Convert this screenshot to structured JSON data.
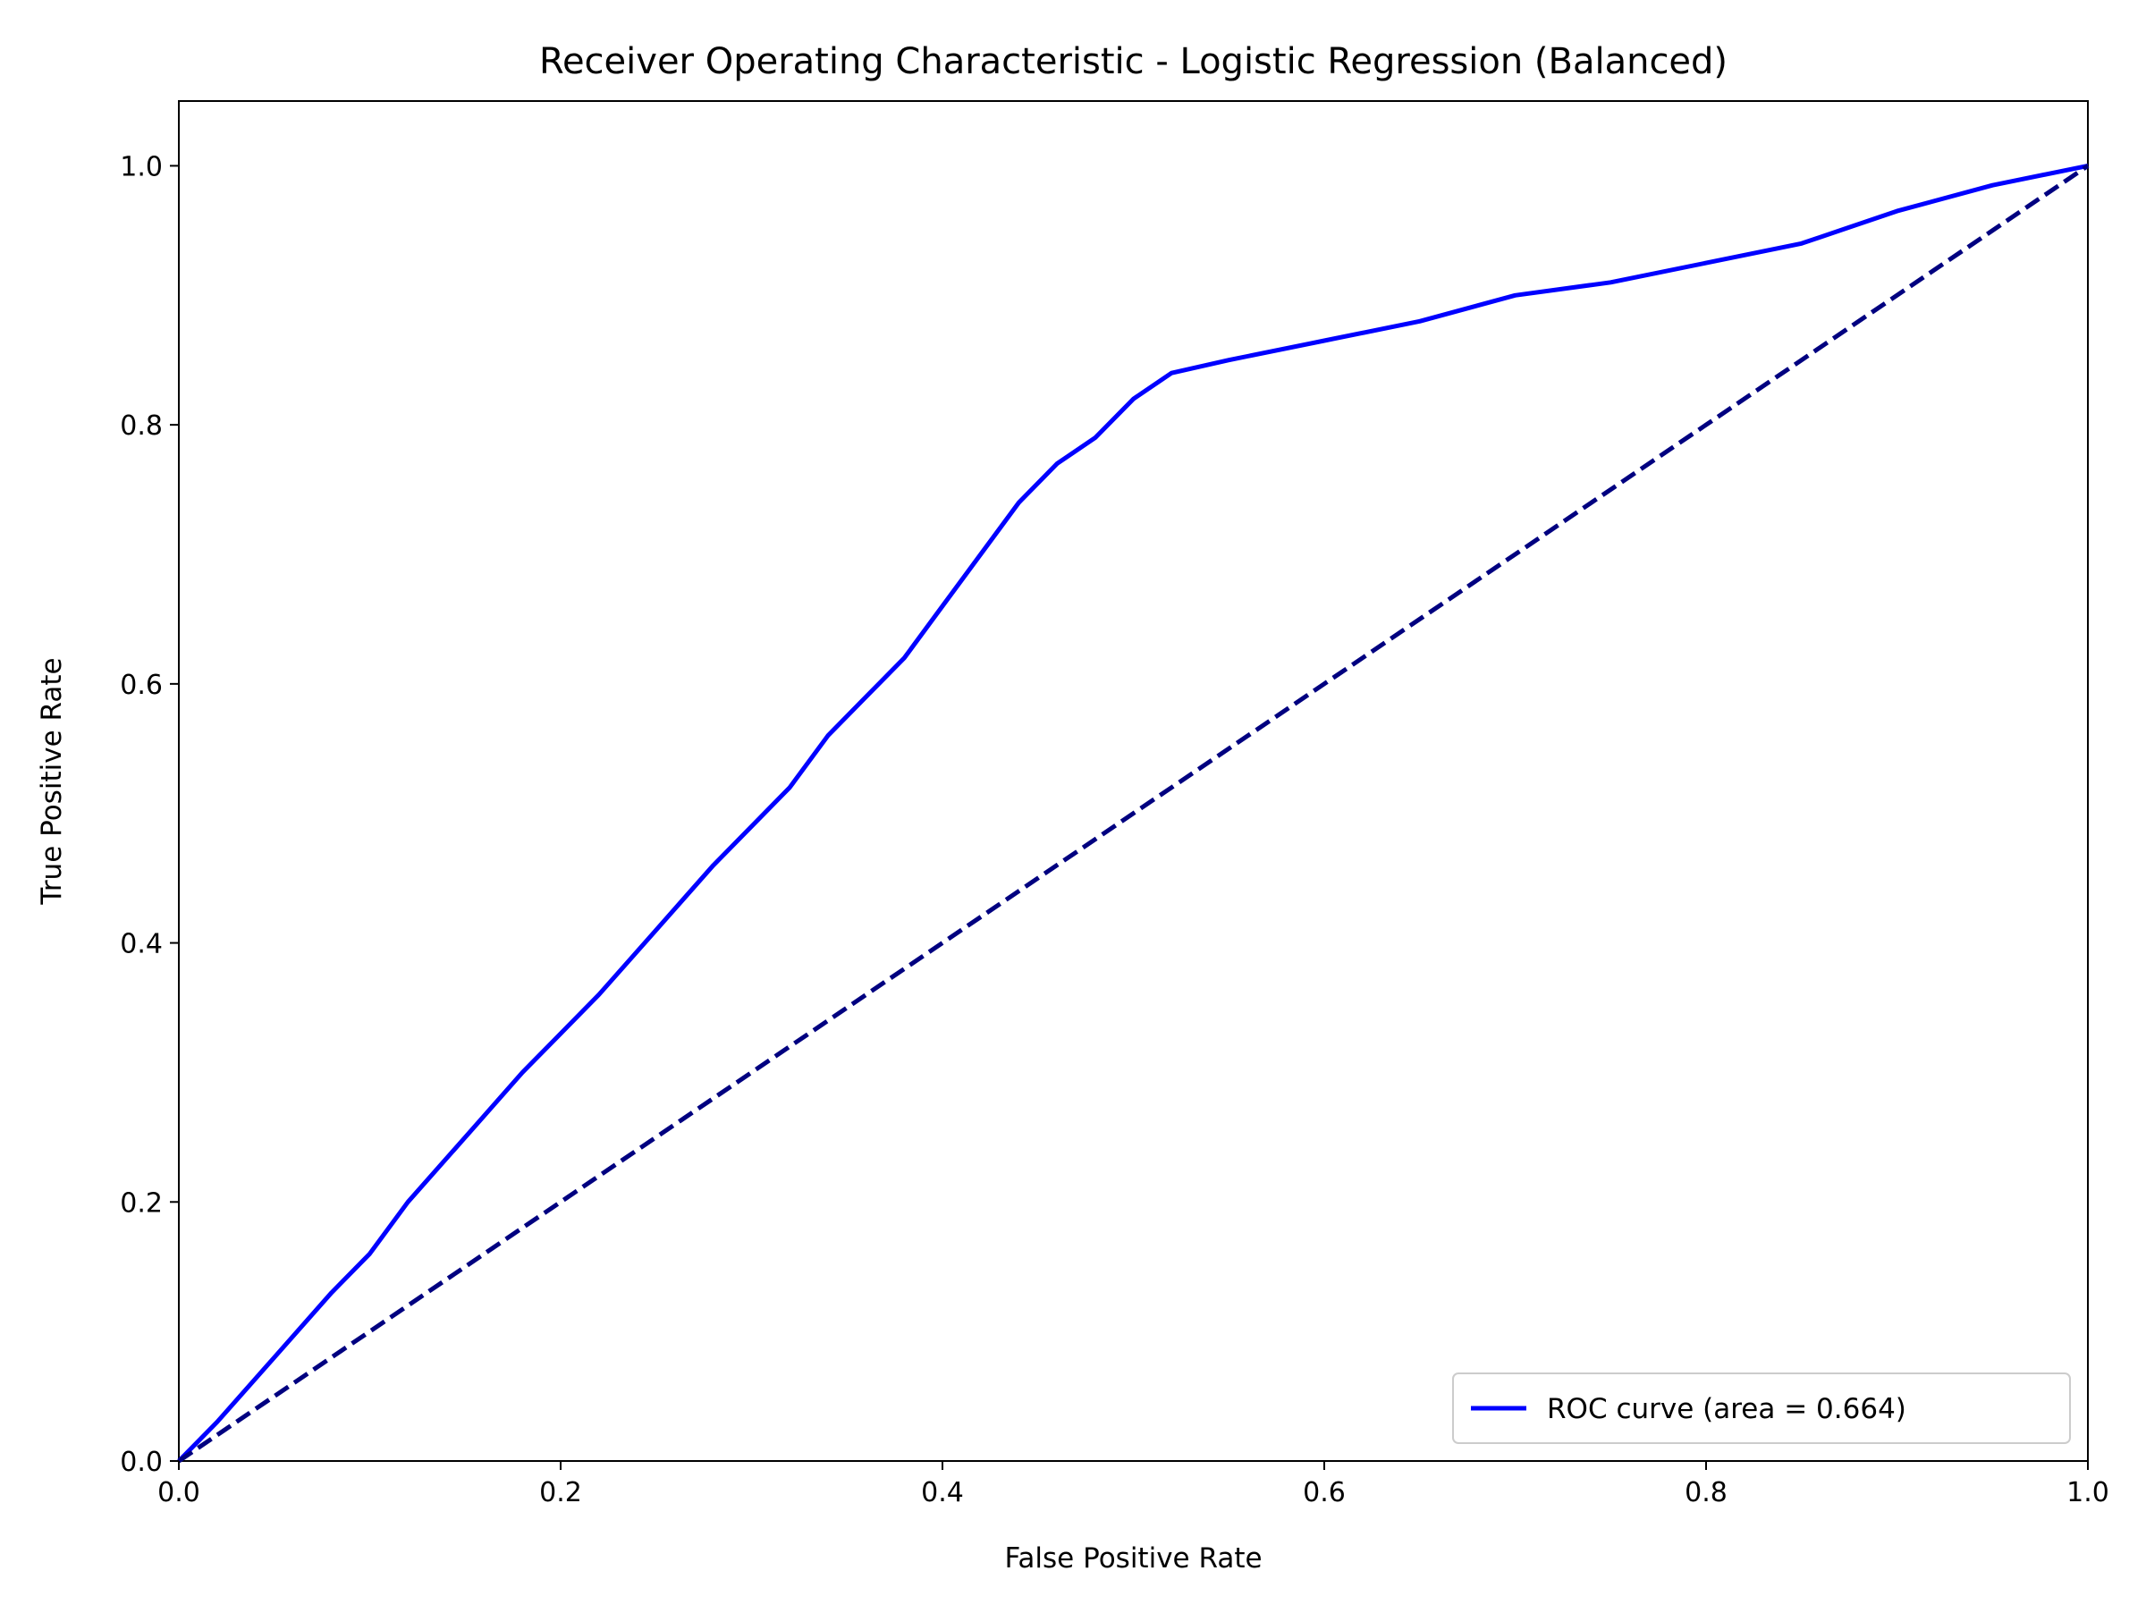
{
  "chart_data": {
    "type": "line",
    "title": "Receiver Operating Characteristic - Logistic Regression (Balanced)",
    "xlabel": "False Positive Rate",
    "ylabel": "True Positive Rate",
    "xlim": [
      0.0,
      1.0
    ],
    "ylim": [
      0.0,
      1.05
    ],
    "xticks": [
      0.0,
      0.2,
      0.4,
      0.6,
      0.8,
      1.0
    ],
    "yticks": [
      0.0,
      0.2,
      0.4,
      0.6,
      0.8,
      1.0
    ],
    "xtick_labels": [
      "0.0",
      "0.2",
      "0.4",
      "0.6",
      "0.8",
      "1.0"
    ],
    "ytick_labels": [
      "0.0",
      "0.2",
      "0.4",
      "0.6",
      "0.8",
      "1.0"
    ],
    "grid": false,
    "legend_position": "lower-right",
    "series": [
      {
        "name": "ROC curve (area = 0.664)",
        "color": "#0000ff",
        "line_style": "solid",
        "x": [
          0.0,
          0.02,
          0.05,
          0.08,
          0.1,
          0.12,
          0.15,
          0.18,
          0.2,
          0.22,
          0.25,
          0.28,
          0.3,
          0.32,
          0.34,
          0.36,
          0.38,
          0.4,
          0.42,
          0.44,
          0.46,
          0.48,
          0.5,
          0.52,
          0.55,
          0.6,
          0.65,
          0.7,
          0.75,
          0.8,
          0.85,
          0.9,
          0.95,
          1.0
        ],
        "y": [
          0.0,
          0.03,
          0.08,
          0.13,
          0.16,
          0.2,
          0.25,
          0.3,
          0.33,
          0.36,
          0.41,
          0.46,
          0.49,
          0.52,
          0.56,
          0.59,
          0.62,
          0.66,
          0.7,
          0.74,
          0.77,
          0.79,
          0.82,
          0.84,
          0.85,
          0.865,
          0.88,
          0.9,
          0.91,
          0.925,
          0.94,
          0.965,
          0.985,
          1.0
        ]
      },
      {
        "name": "",
        "color": "#000080",
        "line_style": "dashed",
        "x": [
          0.0,
          1.0
        ],
        "y": [
          0.0,
          1.0
        ]
      }
    ],
    "legend_label": "ROC curve (area = 0.664)"
  }
}
